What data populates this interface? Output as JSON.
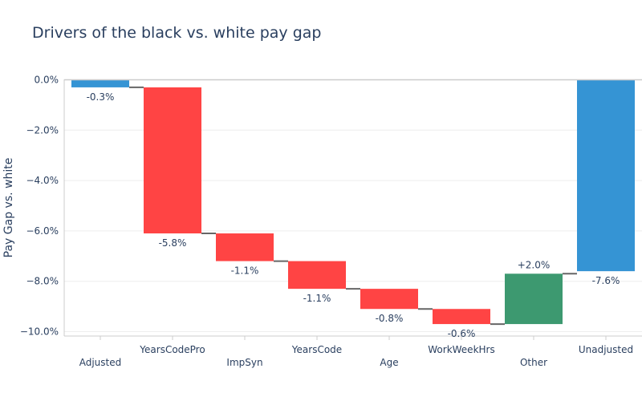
{
  "chart_data": {
    "type": "waterfall",
    "title": "Drivers of the black vs. white pay gap",
    "xlabel": "",
    "ylabel": "Pay Gap vs. white",
    "ylim": [
      -10.2,
      0.2
    ],
    "y_ticks": [
      {
        "value": 0,
        "label": "0.0%"
      },
      {
        "value": -2,
        "label": "−2.0%"
      },
      {
        "value": -4,
        "label": "−4.0%"
      },
      {
        "value": -6,
        "label": "−6.0%"
      },
      {
        "value": -8,
        "label": "−8.0%"
      },
      {
        "value": -10,
        "label": "−10.0%"
      }
    ],
    "bars": [
      {
        "category": "Adjusted",
        "kind": "total",
        "value": -0.3,
        "label": "-0.3%"
      },
      {
        "category": "YearsCodePro",
        "kind": "relative",
        "value": -5.8,
        "label": "-5.8%"
      },
      {
        "category": "ImpSyn",
        "kind": "relative",
        "value": -1.1,
        "label": "-1.1%"
      },
      {
        "category": "YearsCode",
        "kind": "relative",
        "value": -1.1,
        "label": "-1.1%"
      },
      {
        "category": "Age",
        "kind": "relative",
        "value": -0.8,
        "label": "-0.8%"
      },
      {
        "category": "WorkWeekHrs",
        "kind": "relative",
        "value": -0.6,
        "label": "-0.6%"
      },
      {
        "category": "Other",
        "kind": "relative",
        "value": 2.0,
        "label": "+2.0%"
      },
      {
        "category": "Unadjusted",
        "kind": "total",
        "value": -7.6,
        "label": "-7.6%"
      }
    ],
    "colors": {
      "total": "#3594d4",
      "decrease": "#ff4444",
      "increase": "#3d9970",
      "connector": "#666666",
      "grid": "#eeeeee",
      "axis": "#cccccc"
    },
    "grid": true,
    "legend": "none"
  }
}
